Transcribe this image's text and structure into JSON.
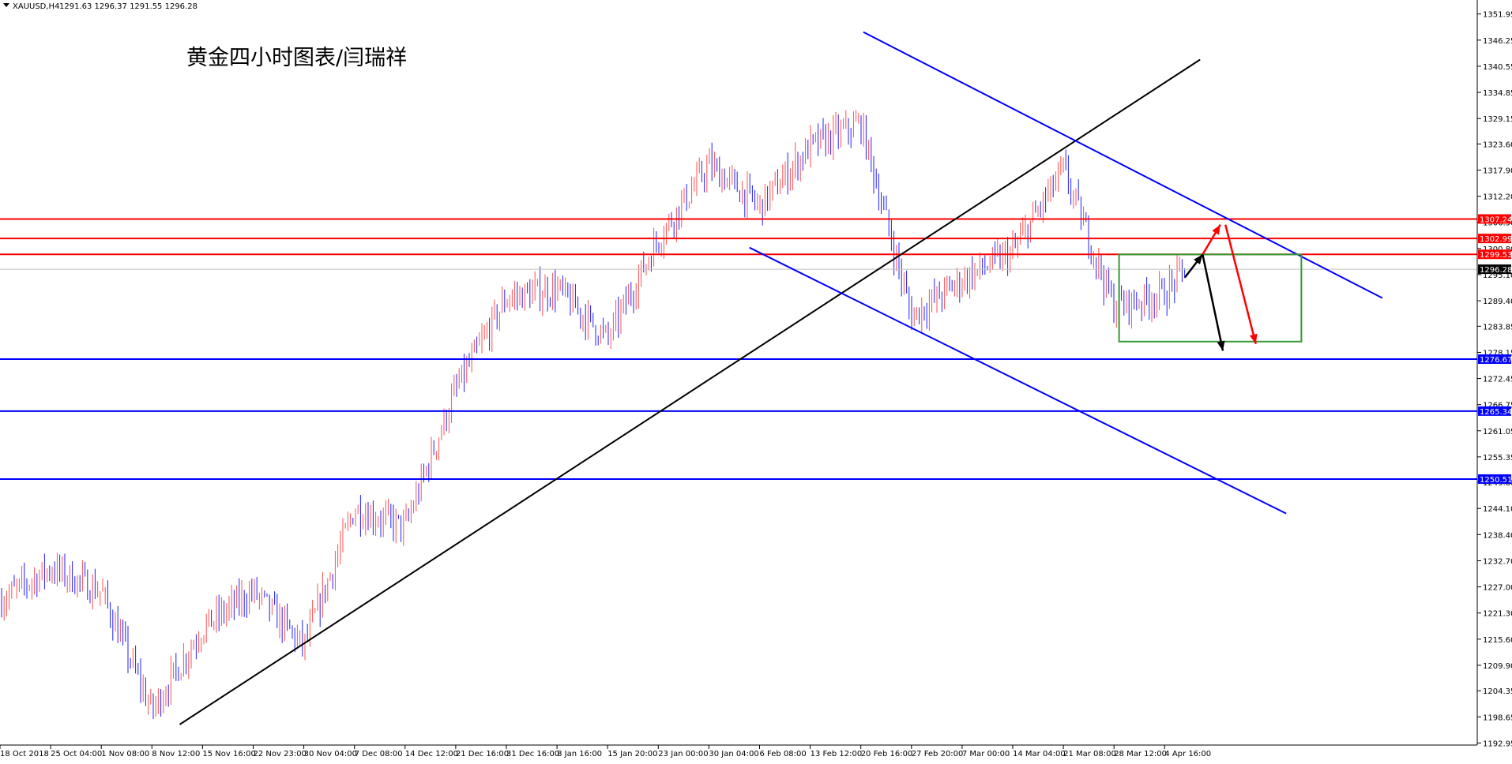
{
  "header": {
    "symbol": "XAUUSD,H4",
    "ohlc": "1291.63 1296.37 1291.55 1296.28"
  },
  "annotation_title": "黄金四小时图表/闫瑞祥",
  "colors": {
    "background": "#ffffff",
    "bull_candle": "#ff5050",
    "bear_candle": "#2020ff",
    "resistance_line": "#ff0000",
    "support_line": "#0000ff",
    "trendline": "#000000",
    "channel": "#0000ff",
    "range_box": "#339933",
    "arrow_red": "#ff0000",
    "arrow_black": "#000000",
    "current_price_line": "#c0c0c0"
  },
  "chart_data": {
    "type": "candlestick",
    "title": "",
    "xlabel": "",
    "ylabel": "",
    "ylim": [
      1192.5,
      1355.0
    ],
    "y_ticks": [
      "1351.95",
      "1346.25",
      "1340.55",
      "1334.85",
      "1329.15",
      "1323.60",
      "1317.90",
      "1312.20",
      "1306.50",
      "1300.80",
      "1295.10",
      "1289.40",
      "1283.85",
      "1278.15",
      "1272.45",
      "1266.75",
      "1261.05",
      "1255.35",
      "1249.80",
      "1244.10",
      "1238.40",
      "1232.70",
      "1227.00",
      "1221.30",
      "1215.60",
      "1209.90",
      "1204.35",
      "1198.65",
      "1192.95"
    ],
    "x_labels": [
      "18 Oct 2018",
      "25 Oct 04:00",
      "1 Nov 08:00",
      "8 Nov 12:00",
      "15 Nov 16:00",
      "22 Nov 23:00",
      "30 Nov 04:00",
      "7 Dec 08:00",
      "14 Dec 12:00",
      "21 Dec 16:00",
      "31 Dec 16:00",
      "8 Jan 16:00",
      "15 Jan 20:00",
      "23 Jan 00:00",
      "30 Jan 04:00",
      "6 Feb 08:00",
      "13 Feb 12:00",
      "20 Feb 16:00",
      "27 Feb 20:00",
      "7 Mar 00:00",
      "14 Mar 04:00",
      "21 Mar 08:00",
      "28 Mar 12:00",
      "4 Apr 16:00"
    ],
    "price_path_anchors": [
      {
        "x": 0,
        "y": 1224
      },
      {
        "x": 1,
        "y": 1231
      },
      {
        "x": 2,
        "y": 1226
      },
      {
        "x": 3,
        "y": 1200
      },
      {
        "x": 4,
        "y": 1218
      },
      {
        "x": 5,
        "y": 1226
      },
      {
        "x": 6,
        "y": 1214
      },
      {
        "x": 7,
        "y": 1244
      },
      {
        "x": 8,
        "y": 1240
      },
      {
        "x": 9,
        "y": 1270
      },
      {
        "x": 10,
        "y": 1290
      },
      {
        "x": 11,
        "y": 1292
      },
      {
        "x": 12,
        "y": 1281
      },
      {
        "x": 13,
        "y": 1303
      },
      {
        "x": 14,
        "y": 1319
      },
      {
        "x": 15,
        "y": 1310
      },
      {
        "x": 16,
        "y": 1323
      },
      {
        "x": 17,
        "y": 1328
      },
      {
        "x": 18,
        "y": 1286
      },
      {
        "x": 19,
        "y": 1294
      },
      {
        "x": 20,
        "y": 1300
      },
      {
        "x": 21,
        "y": 1318
      },
      {
        "x": 22,
        "y": 1288
      },
      {
        "x": 23,
        "y": 1291
      },
      {
        "x": 23.4,
        "y": 1296.28
      }
    ],
    "horizontal_levels": [
      {
        "price": 1307.24,
        "label": "1307.24",
        "color": "#ff0000"
      },
      {
        "price": 1302.99,
        "label": "1302.99",
        "color": "#ff0000"
      },
      {
        "price": 1299.53,
        "label": "1299.53",
        "color": "#ff0000"
      },
      {
        "price": 1276.67,
        "label": "1276.67",
        "color": "#0000ff"
      },
      {
        "price": 1265.34,
        "label": "1265.34",
        "color": "#0000ff"
      },
      {
        "price": 1250.51,
        "label": "1250.51",
        "color": "#0000ff"
      }
    ],
    "current_price": {
      "price": 1296.28,
      "label": "1296.28"
    },
    "trendlines": [
      {
        "name": "ascending-support",
        "color": "#000000",
        "from": {
          "x": 3.55,
          "y": 1197
        },
        "to": {
          "x": 23.7,
          "y": 1342
        }
      },
      {
        "name": "channel-upper",
        "color": "#0000ff",
        "from": {
          "x": 17.05,
          "y": 1348
        },
        "to": {
          "x": 27.3,
          "y": 1290
        }
      },
      {
        "name": "channel-lower",
        "color": "#0000ff",
        "from": {
          "x": 14.8,
          "y": 1301
        },
        "to": {
          "x": 25.4,
          "y": 1243
        }
      }
    ],
    "range_box": {
      "x1": 22.1,
      "x2": 25.7,
      "y_top": 1299.5,
      "y_bottom": 1280.5,
      "color": "#339933"
    },
    "arrows": [
      {
        "name": "black-up",
        "color": "#000000",
        "from": {
          "x": 23.4,
          "y": 1294.5
        },
        "to": {
          "x": 23.75,
          "y": 1299.5
        }
      },
      {
        "name": "black-down",
        "color": "#000000",
        "from": {
          "x": 23.75,
          "y": 1299.5
        },
        "to": {
          "x": 24.15,
          "y": 1278.5
        }
      },
      {
        "name": "red-up",
        "color": "#ff0000",
        "from": {
          "x": 23.75,
          "y": 1299.5
        },
        "to": {
          "x": 24.1,
          "y": 1306
        }
      },
      {
        "name": "red-down",
        "color": "#ff0000",
        "from": {
          "x": 24.2,
          "y": 1306
        },
        "to": {
          "x": 24.8,
          "y": 1280
        }
      }
    ],
    "grid": false
  }
}
